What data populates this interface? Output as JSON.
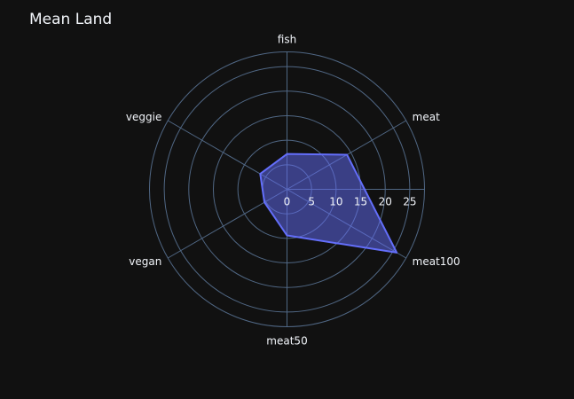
{
  "chart_data": {
    "type": "radar",
    "title": "Mean Land",
    "categories": [
      "fish",
      "meat",
      "meat100",
      "meat50",
      "vegan",
      "veggie"
    ],
    "series": [
      {
        "values": [
          7.2,
          14.1,
          25.8,
          9.4,
          5.3,
          6.3
        ]
      }
    ],
    "radial_range": [
      0,
      28
    ],
    "radial_ticks": [
      0,
      5,
      10,
      15,
      20,
      25
    ],
    "fill": "toself",
    "colors": {
      "background": "#111111",
      "grid": "#506784",
      "text": "#f2f5fa",
      "trace_line": "#636efa",
      "trace_fill": "rgba(99,110,250,0.5)"
    }
  }
}
